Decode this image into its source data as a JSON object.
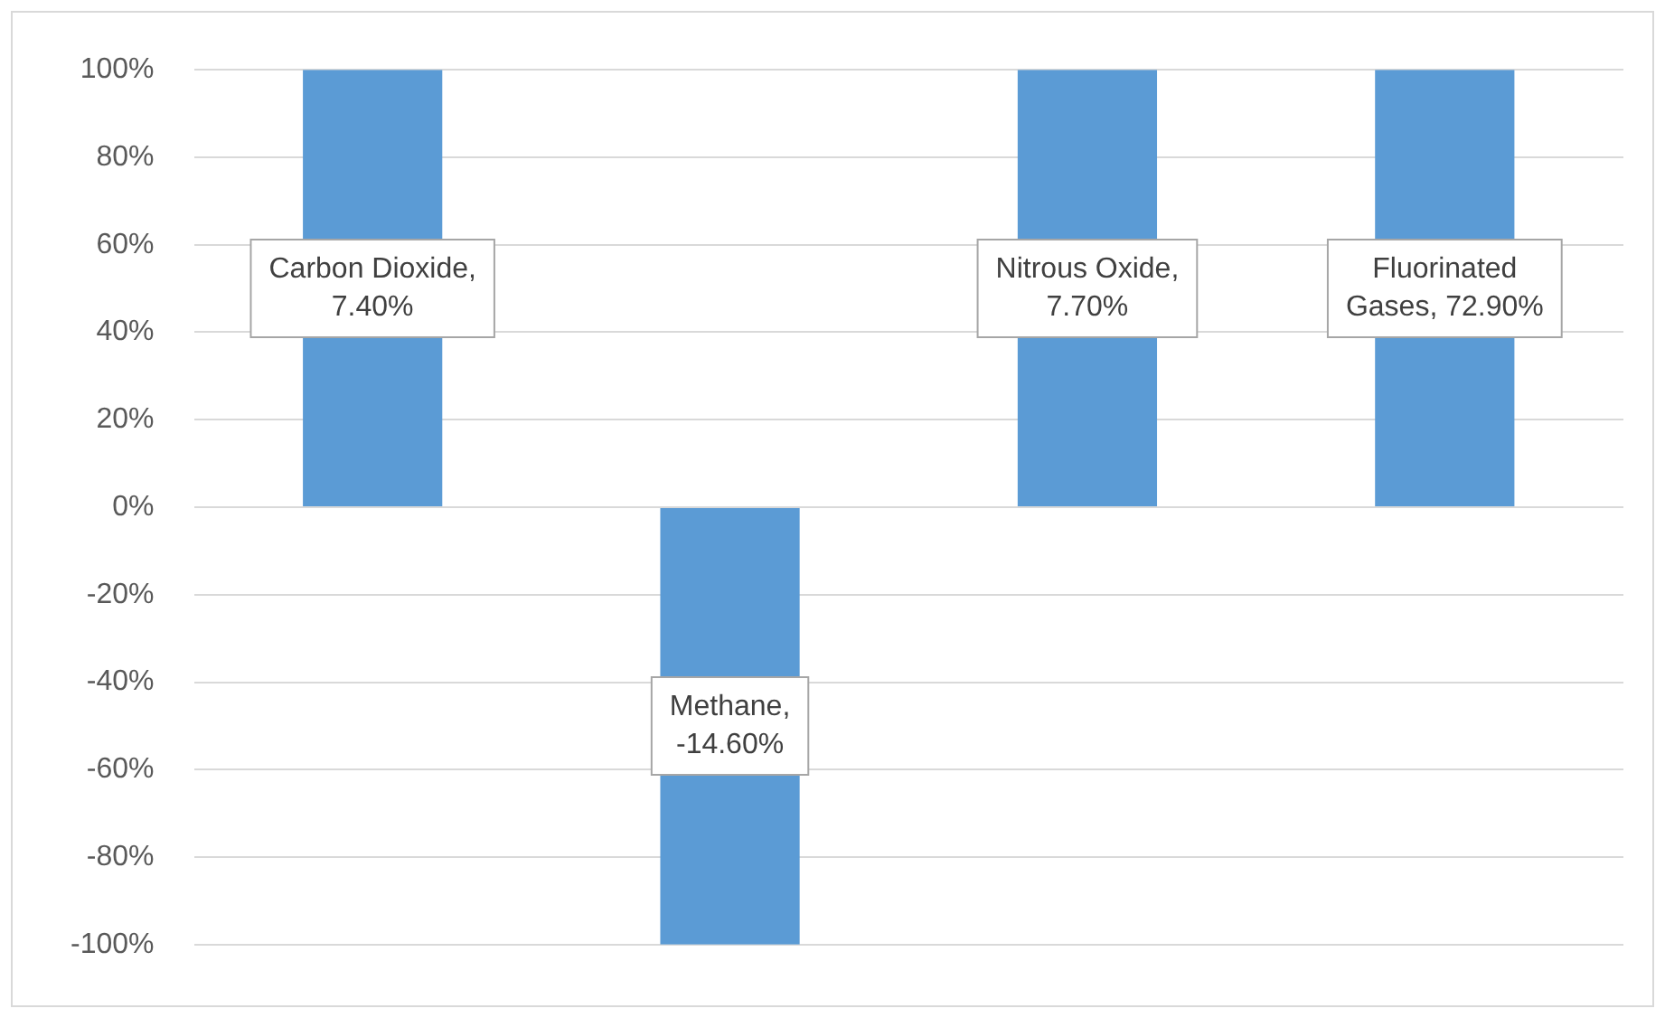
{
  "chart_data": {
    "type": "bar",
    "categories": [
      null,
      null,
      null,
      null
    ],
    "values": [
      100,
      -100,
      100,
      100
    ],
    "color": "#5b9bd5",
    "annotations": [
      "Carbon Dioxide, 7.40%",
      "Methane, -14.60%",
      "Nitrous Oxide, 7.70%",
      "Fluorinated Gases, 72.90%"
    ],
    "ylim": [
      -100,
      100
    ],
    "yticks": [
      {
        "value": -100,
        "label": "-100%"
      },
      {
        "value": -80,
        "label": "-80%"
      },
      {
        "value": -60,
        "label": "-60%"
      },
      {
        "value": -40,
        "label": "-40%"
      },
      {
        "value": -20,
        "label": "-20%"
      },
      {
        "value": 0,
        "label": "0%"
      },
      {
        "value": 20,
        "label": "20%"
      },
      {
        "value": 40,
        "label": "40%"
      },
      {
        "value": 60,
        "label": "60%"
      },
      {
        "value": 80,
        "label": "80%"
      },
      {
        "value": 100,
        "label": "100%"
      }
    ],
    "grid": "y",
    "legend": false
  }
}
